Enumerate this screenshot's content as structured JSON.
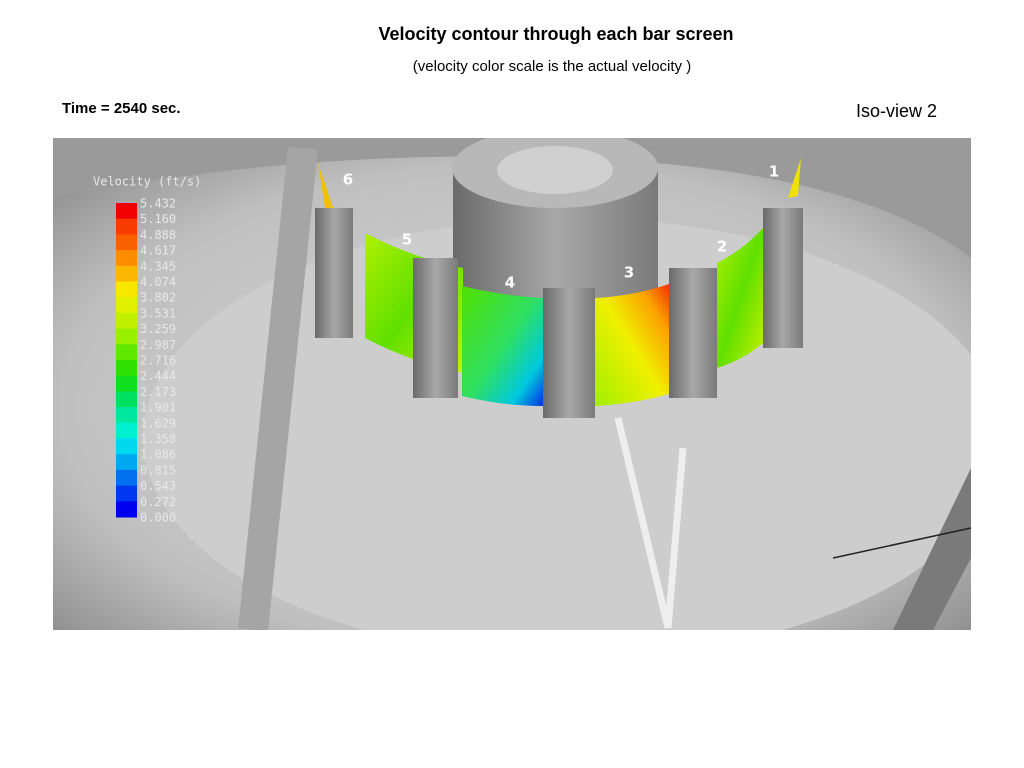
{
  "header": {
    "title": "Velocity contour through each bar screen",
    "subtitle": "(velocity color scale is the actual velocity )"
  },
  "time_label": "Time = 2540 sec.",
  "view_label": "Iso-view 2",
  "legend": {
    "title": "Velocity (ft/s)",
    "ticks": [
      {
        "value": 5.432,
        "label": "5.432"
      },
      {
        "value": 5.16,
        "label": "5.160"
      },
      {
        "value": 4.888,
        "label": "4.888"
      },
      {
        "value": 4.617,
        "label": "4.617"
      },
      {
        "value": 4.345,
        "label": "4.345"
      },
      {
        "value": 4.074,
        "label": "4.074"
      },
      {
        "value": 3.802,
        "label": "3.802"
      },
      {
        "value": 3.531,
        "label": "3.531"
      },
      {
        "value": 3.259,
        "label": "3.259"
      },
      {
        "value": 2.987,
        "label": "2.987"
      },
      {
        "value": 2.716,
        "label": "2.716"
      },
      {
        "value": 2.444,
        "label": "2.444"
      },
      {
        "value": 2.173,
        "label": "2.173"
      },
      {
        "value": 1.901,
        "label": "1.901"
      },
      {
        "value": 1.629,
        "label": "1.629"
      },
      {
        "value": 1.358,
        "label": "1.358"
      },
      {
        "value": 1.086,
        "label": "1.086"
      },
      {
        "value": 0.815,
        "label": "0.815"
      },
      {
        "value": 0.543,
        "label": "0.543"
      },
      {
        "value": 0.272,
        "label": "0.272"
      },
      {
        "value": 0,
        "label": "0.000"
      }
    ],
    "colors": [
      "#f00000",
      "#f83c00",
      "#f86000",
      "#fc8c00",
      "#fcb800",
      "#f8e800",
      "#e0f000",
      "#c0f000",
      "#98f000",
      "#60e800",
      "#30e000",
      "#10e020",
      "#00e060",
      "#00e8a0",
      "#00f0d0",
      "#00d8f0",
      "#00a8f0",
      "#0070f0",
      "#0038f0",
      "#0000f0"
    ]
  },
  "screens": [
    "1",
    "2",
    "3",
    "4",
    "5",
    "6"
  ]
}
